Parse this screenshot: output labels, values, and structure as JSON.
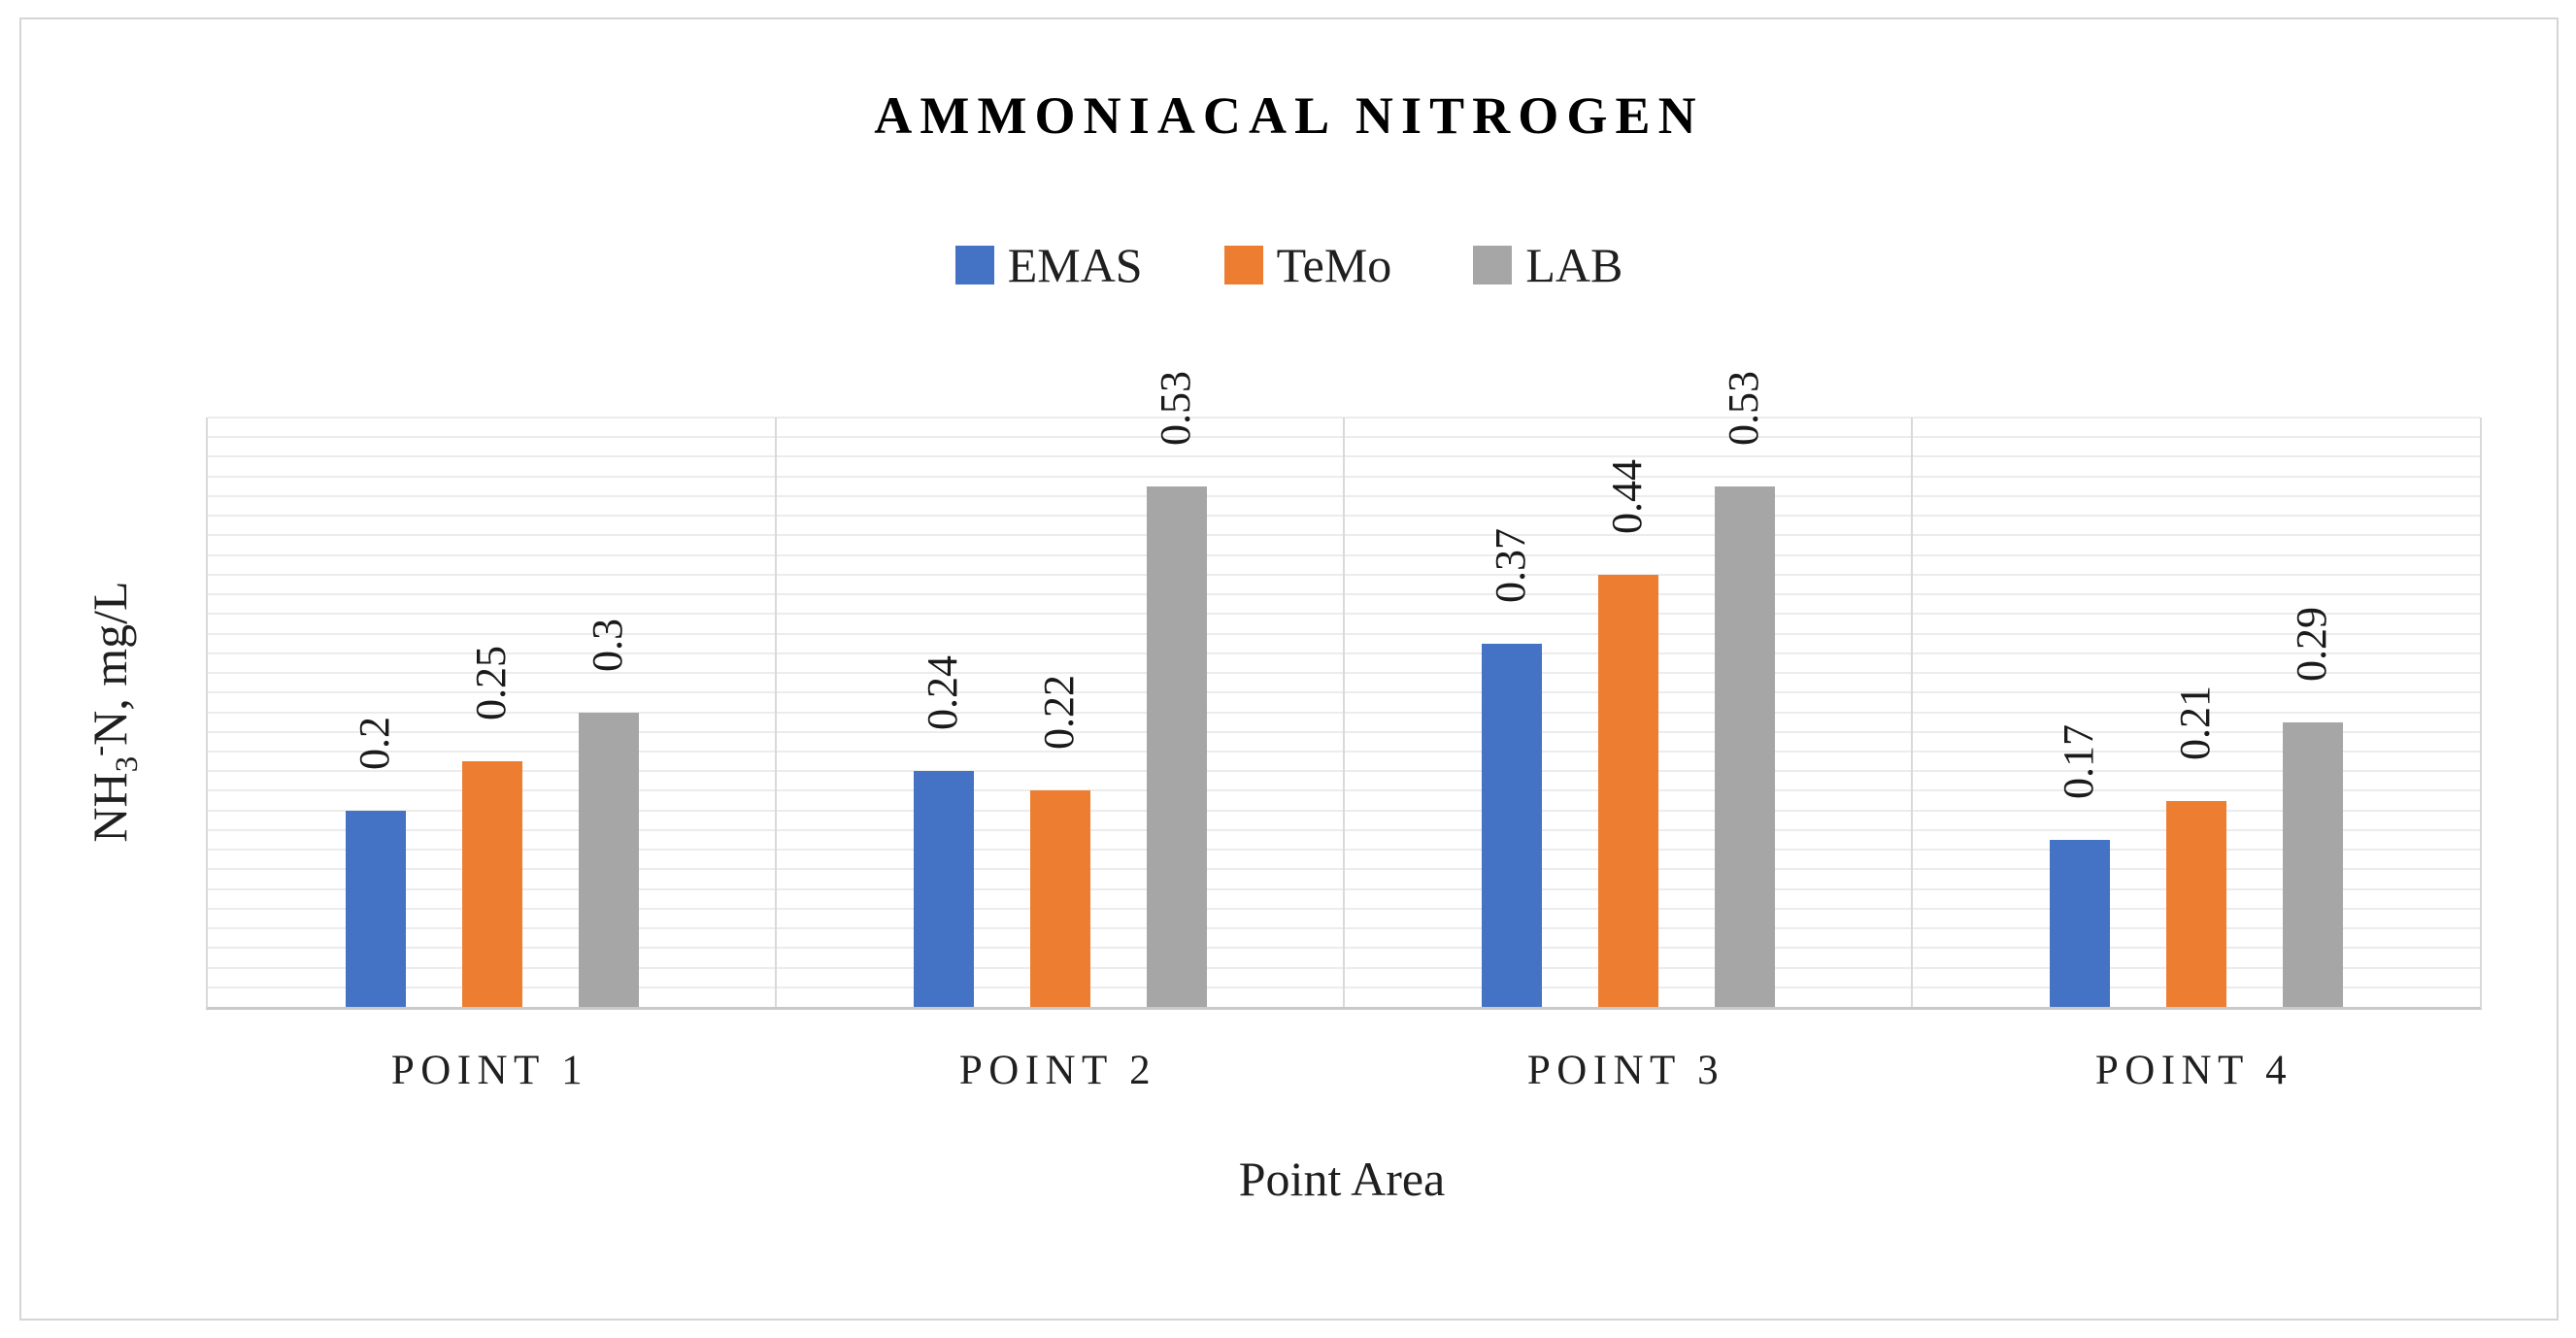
{
  "title": "AMMONIACAL NITROGEN",
  "axis": {
    "x_title": "Point Area",
    "y_title_prefix": "NH",
    "y_title_sub": "3",
    "y_title_sup": "-",
    "y_title_rest": "N, mg/L"
  },
  "legend": {
    "items": [
      "EMAS",
      "TeMo",
      "LAB"
    ]
  },
  "colors": {
    "emas_blue": "#4472C4",
    "temo_orange": "#ED7D31",
    "lab_gray": "#A6A6A6",
    "gridline": "#ececec",
    "axis_line": "#d9d9d9"
  },
  "chart_data": {
    "type": "bar",
    "title": "AMMONIACAL NITROGEN",
    "categories": [
      "POINT 1",
      "POINT 2",
      "POINT 3",
      "POINT 4"
    ],
    "series": [
      {
        "name": "EMAS",
        "color": "#4472C4",
        "values": [
          0.2,
          0.24,
          0.37,
          0.17
        ],
        "labels": [
          "0.2",
          "0.24",
          "0.37",
          "0.17"
        ]
      },
      {
        "name": "TeMo",
        "color": "#ED7D31",
        "values": [
          0.25,
          0.22,
          0.44,
          0.21
        ],
        "labels": [
          "0.25",
          "0.22",
          "0.44",
          "0.21"
        ]
      },
      {
        "name": "LAB",
        "color": "#A6A6A6",
        "values": [
          0.3,
          0.53,
          0.53,
          0.29
        ],
        "labels": [
          "0.3",
          "0.53",
          "0.53",
          "0.29"
        ]
      }
    ],
    "xlabel": "Point Area",
    "ylabel": "NH3-N, mg/L",
    "ylim": [
      0,
      0.6
    ],
    "grid_step": 0.02,
    "grid": true,
    "legend_position": "top",
    "y_tick_labels_shown": false,
    "data_label_rotation": "vertical"
  }
}
